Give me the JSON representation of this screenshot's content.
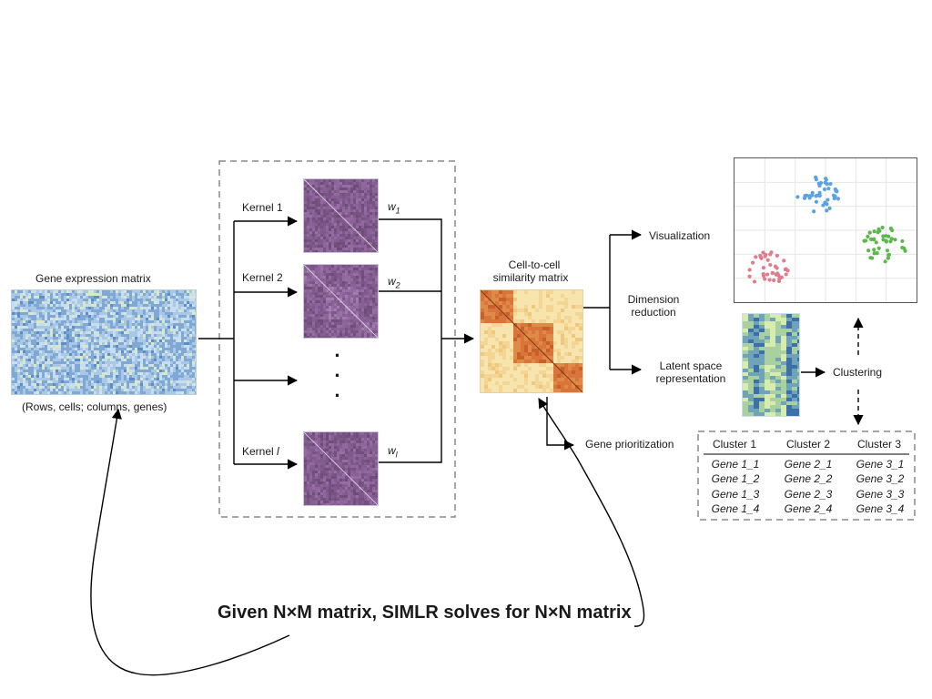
{
  "input": {
    "title": "Gene expression matrix",
    "caption": "(Rows, cells; columns, genes)"
  },
  "kernels": {
    "labels": [
      "Kernel 1",
      "Kernel 2",
      "Kernel l"
    ],
    "weights": [
      "w",
      "w",
      "w"
    ],
    "weight_subs": [
      "1",
      "2",
      "l"
    ],
    "dots": "⋮"
  },
  "similarity": {
    "title_line1": "Cell-to-cell",
    "title_line2": "similarity matrix"
  },
  "outputs": {
    "visualization": "Visualization",
    "dimension_line1": "Dimension",
    "dimension_line2": "reduction",
    "latent_line1": "Latent space",
    "latent_line2": "representation",
    "clustering": "Clustering",
    "gene_prioritization": "Gene prioritization"
  },
  "clusters_table": {
    "headers": [
      "Cluster 1",
      "Cluster 2",
      "Cluster 3"
    ],
    "rows": [
      [
        "Gene 1_1",
        "Gene 2_1",
        "Gene 3_1"
      ],
      [
        "Gene 1_2",
        "Gene 2_2",
        "Gene 3_2"
      ],
      [
        "Gene 1_3",
        "Gene 2_3",
        "Gene 3_3"
      ],
      [
        "Gene 1_4",
        "Gene 2_4",
        "Gene 3_4"
      ]
    ]
  },
  "scatter": {
    "colors": [
      "#5ba3e0",
      "#e07c8c",
      "#5cb84a"
    ]
  },
  "annotation": "Given N×M matrix, SIMLR solves for N×N matrix",
  "colors": {
    "expression": "#8fb5d8",
    "kernel": "#6e4a7e",
    "similarity_dark": "#d96b2c",
    "similarity_light": "#f7e2a8"
  }
}
